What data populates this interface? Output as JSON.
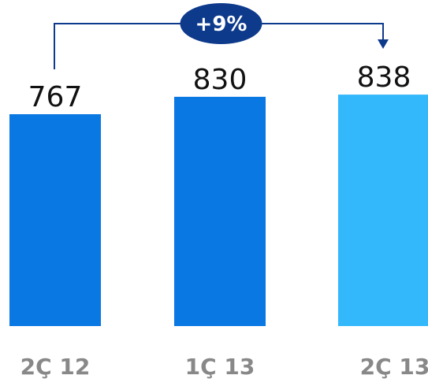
{
  "chart_data": {
    "type": "bar",
    "categories": [
      "2Ç 12",
      "1Ç 13",
      "2Ç 13"
    ],
    "values": [
      767,
      830,
      838
    ],
    "value_labels": [
      "767",
      "830",
      "838"
    ],
    "ylim": [
      0,
      900
    ],
    "grid": false,
    "annotation": {
      "text": "+9%",
      "from_category": "2Ç 12",
      "to_category": "2Ç 13"
    }
  },
  "colors": {
    "bars": [
      "#0a78e3",
      "#0a78e3",
      "#33b8fc"
    ],
    "annotation_line": "#0e3a8c",
    "badge_fill": "#0e3a8c",
    "badge_text": "#ffffff",
    "value_text": "#111111",
    "category_text": "#888888"
  }
}
